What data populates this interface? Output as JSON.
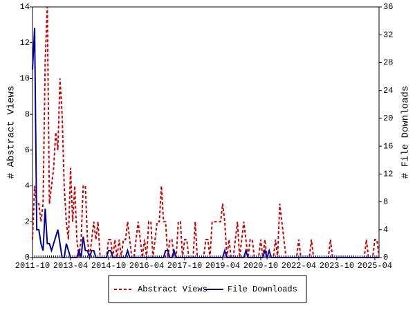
{
  "chart_data": {
    "type": "line",
    "y_label": "# Abstract Views",
    "y2_label": "# File Downloads",
    "x": [
      "2011-10",
      "2011-11",
      "2011-12",
      "2012-01",
      "2012-02",
      "2012-03",
      "2012-04",
      "2012-05",
      "2012-06",
      "2012-07",
      "2012-08",
      "2012-09",
      "2012-10",
      "2012-11",
      "2012-12",
      "2013-01",
      "2013-02",
      "2013-03",
      "2013-04",
      "2013-05",
      "2013-06",
      "2013-07",
      "2013-08",
      "2013-09",
      "2013-10",
      "2013-11",
      "2013-12",
      "2014-01",
      "2014-02",
      "2014-03",
      "2014-04",
      "2014-05",
      "2014-06",
      "2014-07",
      "2014-08",
      "2014-09",
      "2014-10",
      "2014-11",
      "2014-12",
      "2015-01",
      "2015-02",
      "2015-03",
      "2015-04",
      "2015-05",
      "2015-06",
      "2015-07",
      "2015-08",
      "2015-09",
      "2015-10",
      "2015-11",
      "2015-12",
      "2016-01",
      "2016-02",
      "2016-03",
      "2016-04",
      "2016-05",
      "2016-06",
      "2016-07",
      "2016-08",
      "2016-09",
      "2016-10",
      "2016-11",
      "2016-12",
      "2017-01",
      "2017-02",
      "2017-03",
      "2017-04",
      "2017-05",
      "2017-06",
      "2017-07",
      "2017-08",
      "2017-09",
      "2017-10",
      "2017-11",
      "2017-12",
      "2018-01",
      "2018-02",
      "2018-03",
      "2018-04",
      "2018-05",
      "2018-06",
      "2018-07",
      "2018-08",
      "2018-09",
      "2018-10",
      "2018-11",
      "2018-12",
      "2019-01",
      "2019-02",
      "2019-03",
      "2019-04",
      "2019-05",
      "2019-06",
      "2019-07",
      "2019-08",
      "2019-09",
      "2019-10",
      "2019-11",
      "2019-12",
      "2020-01",
      "2020-02",
      "2020-03",
      "2020-04",
      "2020-05",
      "2020-06",
      "2020-07",
      "2020-08",
      "2020-09",
      "2020-10",
      "2020-11",
      "2020-12",
      "2021-01",
      "2021-02",
      "2021-03",
      "2021-04",
      "2021-05",
      "2021-06",
      "2021-07",
      "2021-08",
      "2021-09",
      "2021-10",
      "2021-11",
      "2021-12",
      "2022-01",
      "2022-02",
      "2022-03",
      "2022-04",
      "2022-05",
      "2022-06",
      "2022-07",
      "2022-08",
      "2022-09",
      "2022-10",
      "2022-11",
      "2022-12",
      "2023-01",
      "2023-02",
      "2023-03",
      "2023-04",
      "2023-05",
      "2023-06",
      "2023-07",
      "2023-08",
      "2023-09",
      "2023-10",
      "2023-11",
      "2023-12",
      "2024-01",
      "2024-02",
      "2024-03",
      "2024-04",
      "2024-05",
      "2024-06",
      "2024-07",
      "2024-08",
      "2024-09",
      "2024-10",
      "2024-11",
      "2024-12",
      "2025-01",
      "2025-02",
      "2025-03",
      "2025-04",
      "2025-05",
      "2025-06"
    ],
    "xticks": [
      "2011-10",
      "2013-04",
      "2014-10",
      "2016-04",
      "2017-10",
      "2019-04",
      "2020-10",
      "2022-04",
      "2023-10",
      "2025-04"
    ],
    "ylim": [
      0,
      14
    ],
    "yticks": [
      0,
      2,
      4,
      6,
      8,
      10,
      12,
      14
    ],
    "y2lim": [
      0,
      36
    ],
    "y2ticks": [
      0,
      4,
      8,
      12,
      16,
      20,
      24,
      28,
      32,
      36
    ],
    "series": [
      {
        "name": "Abstract Views",
        "color": "#cc0000",
        "dashed": true,
        "axis": "y",
        "values": [
          1,
          4,
          3,
          3,
          2,
          3,
          11,
          14,
          3,
          4,
          5,
          7,
          6,
          10,
          8,
          4,
          2,
          1,
          5,
          2,
          4,
          1,
          0,
          1,
          4,
          4,
          1,
          0,
          1,
          2,
          1,
          2,
          0,
          0,
          0,
          0,
          1,
          1,
          0,
          1,
          0,
          1,
          0,
          1,
          1,
          2,
          1,
          0,
          0,
          1,
          2,
          1,
          0,
          1,
          0,
          2,
          2,
          0,
          1,
          2,
          2,
          4,
          2,
          2,
          0,
          1,
          1,
          0,
          0,
          2,
          2,
          0,
          1,
          1,
          0,
          0,
          0,
          2,
          0,
          0,
          0,
          0,
          1,
          1,
          0,
          2,
          2,
          2,
          2,
          2,
          3,
          2,
          0,
          1,
          0,
          0,
          1,
          2,
          0,
          1,
          2,
          1,
          0,
          1,
          1,
          0,
          0,
          0,
          1,
          0,
          1,
          0,
          0,
          0,
          0,
          1,
          0,
          3,
          2,
          1,
          0,
          0,
          0,
          0,
          0,
          0,
          1,
          0,
          0,
          0,
          0,
          0,
          1,
          0,
          0,
          0,
          0,
          0,
          0,
          0,
          0,
          1,
          0,
          0,
          0,
          0,
          0,
          0,
          0,
          0,
          0,
          0,
          0,
          0,
          0,
          0,
          0,
          0,
          1,
          0,
          0,
          0,
          1,
          1,
          0
        ]
      },
      {
        "name": "File Downloads",
        "color": "#000099",
        "dashed": false,
        "axis": "y2",
        "values": [
          27,
          33,
          4,
          4,
          2,
          1,
          7,
          2,
          2,
          1,
          2,
          3,
          4,
          2,
          0,
          0,
          2,
          1,
          0,
          0,
          0,
          0,
          1,
          0,
          3,
          1,
          1,
          0,
          1,
          1,
          0,
          0,
          0,
          0,
          0,
          0,
          1,
          1,
          0,
          0,
          0,
          0,
          0,
          0,
          0,
          1,
          0,
          0,
          0,
          0,
          0,
          0,
          0,
          0,
          0,
          0,
          0,
          0,
          0,
          0,
          0,
          0,
          0,
          1,
          1,
          0,
          0,
          1,
          0,
          0,
          0,
          0,
          0,
          0,
          0,
          0,
          0,
          0,
          0,
          0,
          0,
          0,
          0,
          0,
          0,
          0,
          0,
          0,
          0,
          0,
          0,
          1,
          0,
          0,
          0,
          0,
          0,
          0,
          0,
          0,
          0,
          1,
          0,
          0,
          0,
          0,
          0,
          0,
          0,
          0,
          1,
          0,
          1,
          0,
          0,
          0,
          0,
          0,
          0,
          0,
          0,
          0,
          0,
          0,
          0,
          0,
          0,
          0,
          0,
          0,
          0,
          0,
          0,
          0,
          0,
          0,
          0,
          0,
          0,
          0,
          0,
          0,
          0,
          0,
          0,
          0,
          0,
          0,
          0,
          0,
          0,
          0,
          0,
          0,
          0,
          0,
          0,
          0,
          0,
          0,
          0,
          0,
          0,
          0,
          0
        ]
      }
    ],
    "legend": "bottom"
  }
}
